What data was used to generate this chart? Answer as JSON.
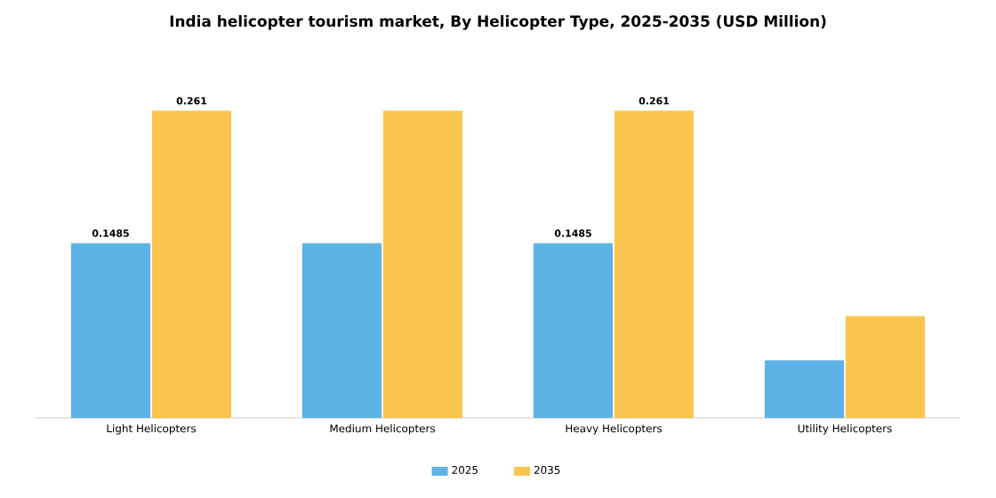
{
  "chart_data": {
    "type": "bar",
    "title": "India helicopter tourism market, By Helicopter Type, 2025-2035 (USD Million)",
    "categories": [
      "Light Helicopters",
      "Medium Helicopters",
      "Heavy Helicopters",
      "Utility Helicopters"
    ],
    "series": [
      {
        "name": "2025",
        "color": "#5db3e6",
        "values": [
          0.1485,
          0.1485,
          0.1485,
          0.049
        ],
        "value_labels": [
          "0.1485",
          null,
          "0.1485",
          null
        ]
      },
      {
        "name": "2035",
        "color": "#f9c54f",
        "values": [
          0.261,
          0.261,
          0.261,
          0.0865
        ],
        "value_labels": [
          "0.261",
          null,
          "0.261",
          null
        ]
      }
    ],
    "tick_labels": "x",
    "legend": "bottom",
    "grid": false
  }
}
